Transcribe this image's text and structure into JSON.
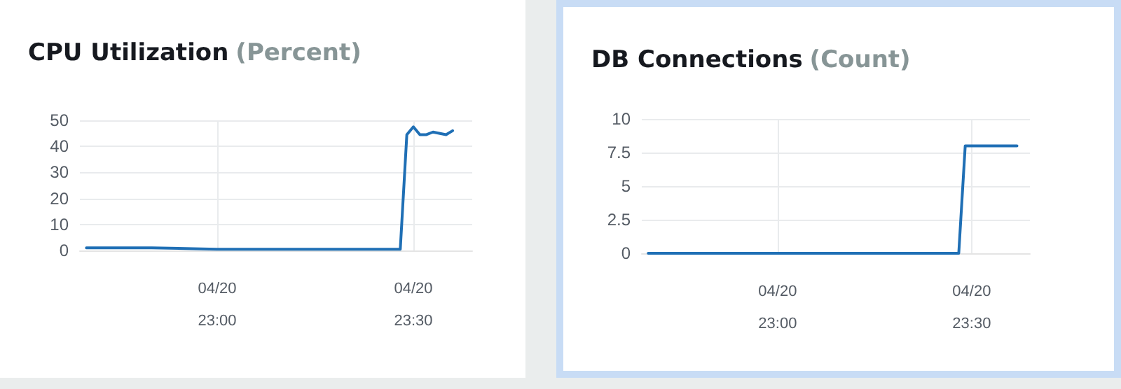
{
  "chart_data": [
    {
      "type": "line",
      "title": "CPU Utilization",
      "subtitle": "(Percent)",
      "series": [
        {
          "color": "#1f6fb5",
          "x": [
            "--04-20T22:40",
            "--04-20T22:50",
            "--04-20T23:00",
            "--04-20T23:10",
            "--04-20T23:20",
            "--04-20T23:28",
            "--04-20T23:29",
            "--04-20T23:30",
            "--04-20T23:31",
            "--04-20T23:32",
            "--04-20T23:33",
            "--04-20T23:35",
            "--04-20T23:36"
          ],
          "values": [
            1,
            1,
            0.5,
            0.5,
            0.5,
            0.5,
            44.5,
            47.5,
            44.5,
            44.5,
            45.5,
            44.5,
            46
          ]
        }
      ],
      "xlim": [
        "--04-20T22:39",
        "--04-20T23:39"
      ],
      "xticks": [
        {
          "value": "--04-20T23:00",
          "label": "04/20\n23:00"
        },
        {
          "value": "--04-20T23:30",
          "label": "04/20\n23:30"
        }
      ],
      "ylim": [
        0,
        50
      ],
      "yticks": [
        0,
        10,
        20,
        30,
        40,
        50
      ],
      "grid": true,
      "marker": "none",
      "line_style": "solid"
    },
    {
      "type": "line",
      "title": "DB Connections",
      "subtitle": "(Count)",
      "series": [
        {
          "color": "#1f6fb5",
          "x": [
            "--04-20T22:40",
            "--04-20T23:28",
            "--04-20T23:29",
            "--04-20T23:37"
          ],
          "values": [
            0,
            0,
            8,
            8
          ]
        }
      ],
      "xlim": [
        "--04-20T22:39",
        "--04-20T23:39"
      ],
      "xticks": [
        {
          "value": "--04-20T23:00",
          "label": "04/20\n23:00"
        },
        {
          "value": "--04-20T23:30",
          "label": "04/20\n23:30"
        }
      ],
      "ylim": [
        0,
        10
      ],
      "yticks": [
        0,
        2.5,
        5,
        7.5,
        10
      ],
      "grid": true,
      "marker": "none",
      "line_style": "solid"
    }
  ]
}
